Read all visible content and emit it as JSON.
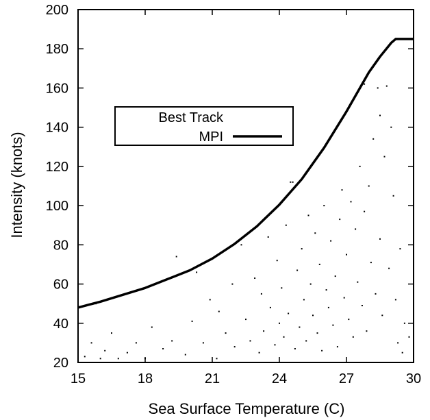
{
  "chart_data": {
    "type": "scatter",
    "title": "",
    "xlabel": "Sea Surface Temperature (C)",
    "ylabel": "Intensity (knots)",
    "xlim": [
      15,
      30
    ],
    "ylim": [
      20,
      200
    ],
    "xticks": [
      15,
      18,
      21,
      24,
      27,
      30
    ],
    "yticks": [
      20,
      40,
      60,
      80,
      100,
      120,
      140,
      160,
      180,
      200
    ],
    "grid": false,
    "legend": {
      "placement": "upper-left",
      "entries": [
        {
          "label": "Best Track",
          "style": "points"
        },
        {
          "label": "MPI",
          "style": "line"
        }
      ]
    },
    "series": [
      {
        "name": "MPI",
        "type": "line",
        "color": "#000000",
        "x": [
          15,
          16,
          17,
          18,
          19,
          20,
          21,
          22,
          23,
          24,
          25,
          26,
          27,
          28,
          28.5,
          29,
          29.2,
          30
        ],
        "y": [
          48,
          51,
          54.5,
          58,
          62.5,
          67,
          73,
          80.5,
          89.5,
          100.5,
          113.5,
          129.5,
          148,
          168,
          176,
          183,
          185,
          185
        ]
      },
      {
        "name": "Best Track",
        "type": "scatter",
        "color": "#000000",
        "points": [
          [
            15.3,
            23
          ],
          [
            15.6,
            30
          ],
          [
            15.8,
            50
          ],
          [
            16.0,
            22
          ],
          [
            16.2,
            26
          ],
          [
            16.5,
            35
          ],
          [
            16.8,
            22
          ],
          [
            17.2,
            25
          ],
          [
            17.6,
            30
          ],
          [
            18.0,
            22
          ],
          [
            18.3,
            38
          ],
          [
            18.8,
            27
          ],
          [
            19.2,
            31
          ],
          [
            19.4,
            74
          ],
          [
            19.8,
            24
          ],
          [
            20.1,
            41
          ],
          [
            20.3,
            66
          ],
          [
            20.6,
            30
          ],
          [
            20.9,
            52
          ],
          [
            21.2,
            22
          ],
          [
            21.3,
            46
          ],
          [
            21.6,
            35
          ],
          [
            21.9,
            60
          ],
          [
            22.0,
            28
          ],
          [
            22.3,
            80
          ],
          [
            22.5,
            42
          ],
          [
            22.7,
            31
          ],
          [
            22.9,
            63
          ],
          [
            23.1,
            25
          ],
          [
            23.2,
            55
          ],
          [
            23.3,
            36
          ],
          [
            23.5,
            84
          ],
          [
            23.6,
            48
          ],
          [
            23.8,
            29
          ],
          [
            23.9,
            72
          ],
          [
            24.0,
            40
          ],
          [
            24.1,
            58
          ],
          [
            24.2,
            33
          ],
          [
            24.3,
            90
          ],
          [
            24.4,
            45
          ],
          [
            24.5,
            112
          ],
          [
            24.6,
            112
          ],
          [
            24.7,
            27
          ],
          [
            24.8,
            67
          ],
          [
            24.9,
            38
          ],
          [
            25.0,
            78
          ],
          [
            25.1,
            52
          ],
          [
            25.2,
            31
          ],
          [
            25.3,
            95
          ],
          [
            25.4,
            60
          ],
          [
            25.5,
            44
          ],
          [
            25.6,
            86
          ],
          [
            25.7,
            35
          ],
          [
            25.8,
            70
          ],
          [
            25.9,
            26
          ],
          [
            26.0,
            100
          ],
          [
            26.1,
            57
          ],
          [
            26.2,
            48
          ],
          [
            26.3,
            82
          ],
          [
            26.4,
            39
          ],
          [
            26.5,
            64
          ],
          [
            26.6,
            28
          ],
          [
            26.7,
            93
          ],
          [
            26.8,
            108
          ],
          [
            26.9,
            53
          ],
          [
            27.0,
            75
          ],
          [
            27.1,
            42
          ],
          [
            27.2,
            102
          ],
          [
            27.3,
            33
          ],
          [
            27.4,
            88
          ],
          [
            27.5,
            61
          ],
          [
            27.6,
            120
          ],
          [
            27.7,
            49
          ],
          [
            27.8,
            97
          ],
          [
            27.8,
            162
          ],
          [
            27.9,
            36
          ],
          [
            28.0,
            110
          ],
          [
            28.1,
            71
          ],
          [
            28.2,
            134
          ],
          [
            28.3,
            55
          ],
          [
            28.4,
            160
          ],
          [
            28.5,
            83
          ],
          [
            28.5,
            146
          ],
          [
            28.6,
            44
          ],
          [
            28.7,
            125
          ],
          [
            28.8,
            161
          ],
          [
            28.9,
            68
          ],
          [
            29.0,
            140
          ],
          [
            29.1,
            105
          ],
          [
            29.2,
            52
          ],
          [
            29.3,
            30
          ],
          [
            29.4,
            78
          ],
          [
            29.5,
            25
          ],
          [
            29.6,
            40
          ],
          [
            29.8,
            33
          ]
        ]
      }
    ]
  }
}
